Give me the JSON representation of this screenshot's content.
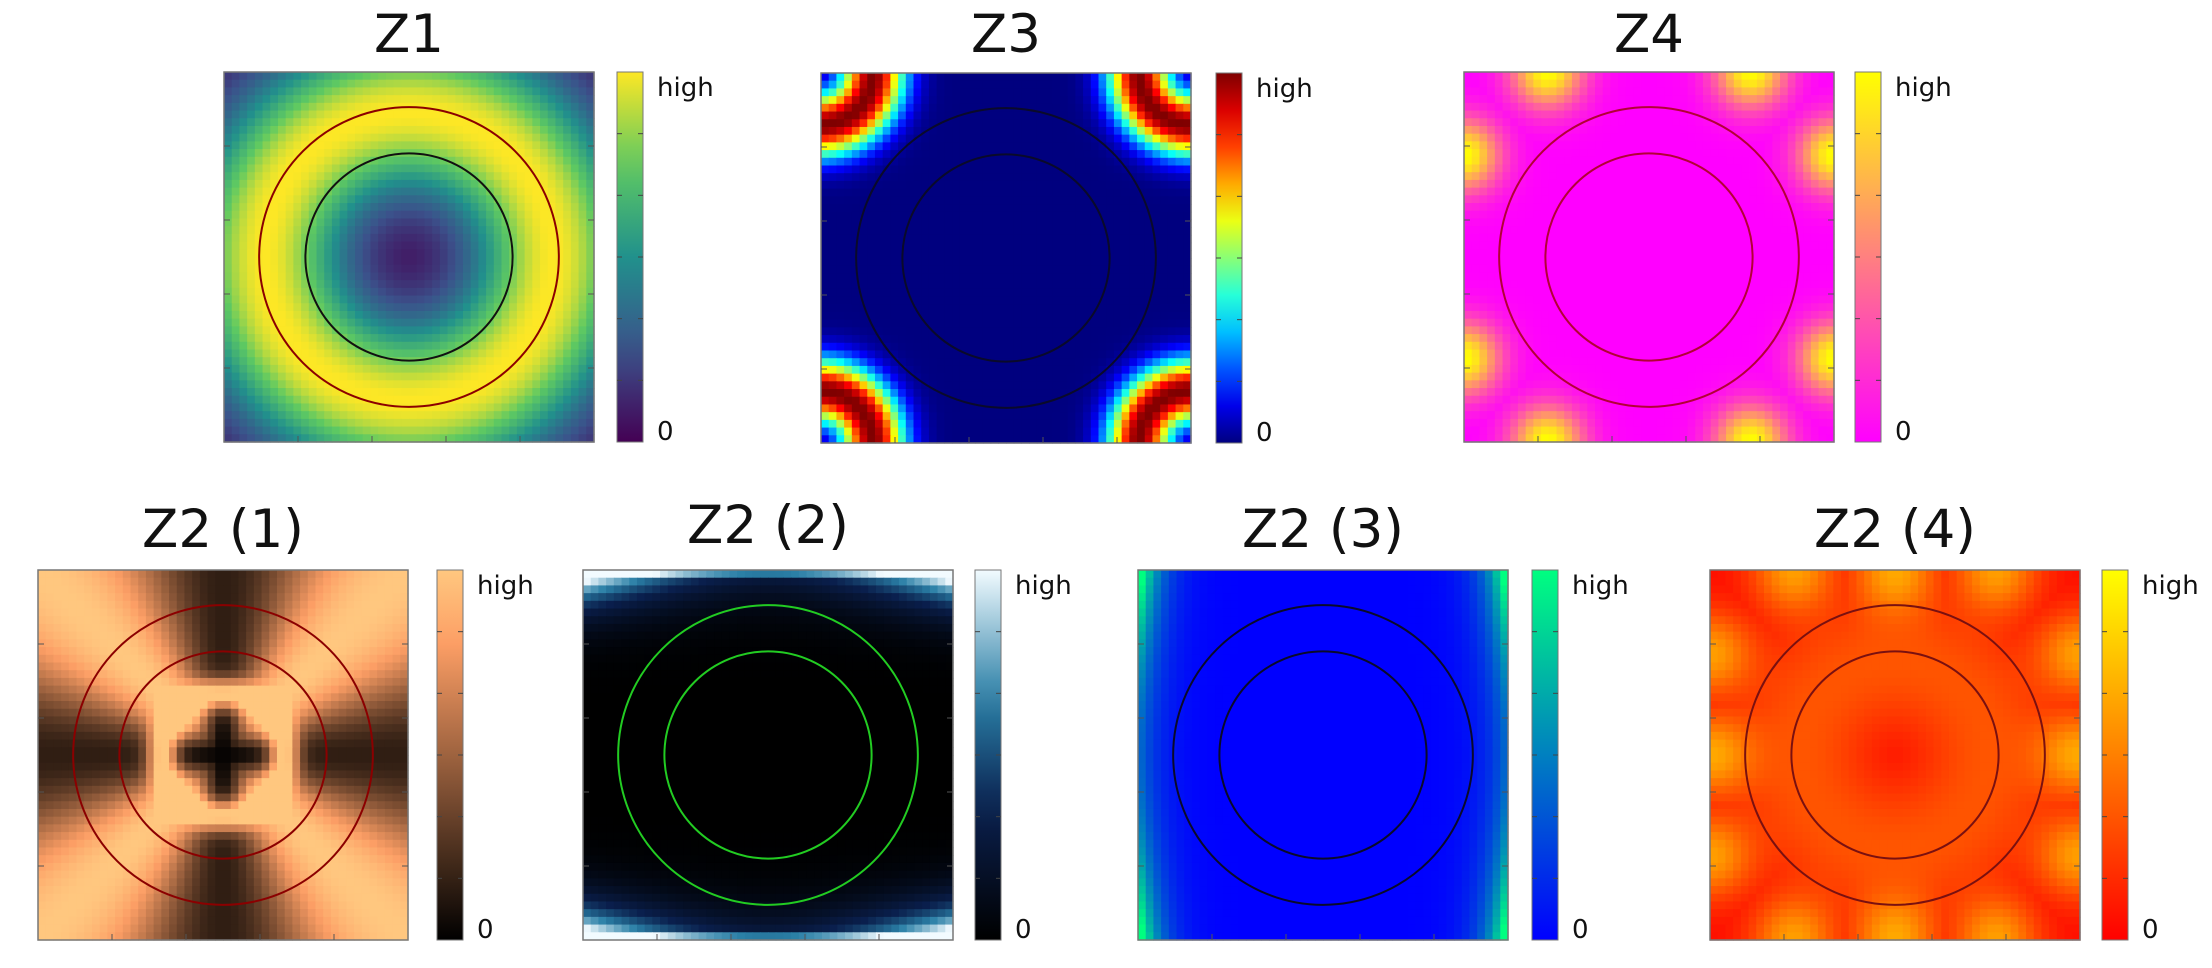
{
  "chart_data": [
    {
      "type": "heatmap",
      "title": "Z1",
      "colorbar": {
        "max_label": "high",
        "min_label": "0"
      },
      "colormap": "viridis",
      "field": "radial-ring",
      "circle_color": "#8b0000",
      "inner_circle_color": "#111111"
    },
    {
      "type": "heatmap",
      "title": "Z3",
      "colorbar": {
        "max_label": "high",
        "min_label": "0"
      },
      "colormap": "jet",
      "field": "corners",
      "circle_color": "#0a0a2a"
    },
    {
      "type": "heatmap",
      "title": "Z4",
      "colorbar": {
        "max_label": "high",
        "min_label": "0"
      },
      "colormap": "spring",
      "field": "edge-spots",
      "circle_color": "#b30036"
    },
    {
      "type": "heatmap",
      "title": "Z2 (1)",
      "colorbar": {
        "max_label": "high",
        "min_label": "0"
      },
      "colormap": "copper",
      "field": "cross",
      "circle_color": "#8b0000"
    },
    {
      "type": "heatmap",
      "title": "Z2 (2)",
      "colorbar": {
        "max_label": "high",
        "min_label": "0"
      },
      "colormap": "ice",
      "field": "top-bottom",
      "circle_color": "#22cc22"
    },
    {
      "type": "heatmap",
      "title": "Z2 (3)",
      "colorbar": {
        "max_label": "high",
        "min_label": "0"
      },
      "colormap": "winter",
      "field": "left-right",
      "circle_color": "#0a0a2a"
    },
    {
      "type": "heatmap",
      "title": "Z2 (4)",
      "colorbar": {
        "max_label": "high",
        "min_label": "0"
      },
      "colormap": "autumn",
      "field": "edge-spots-ring",
      "circle_color": "#7a1010"
    }
  ]
}
